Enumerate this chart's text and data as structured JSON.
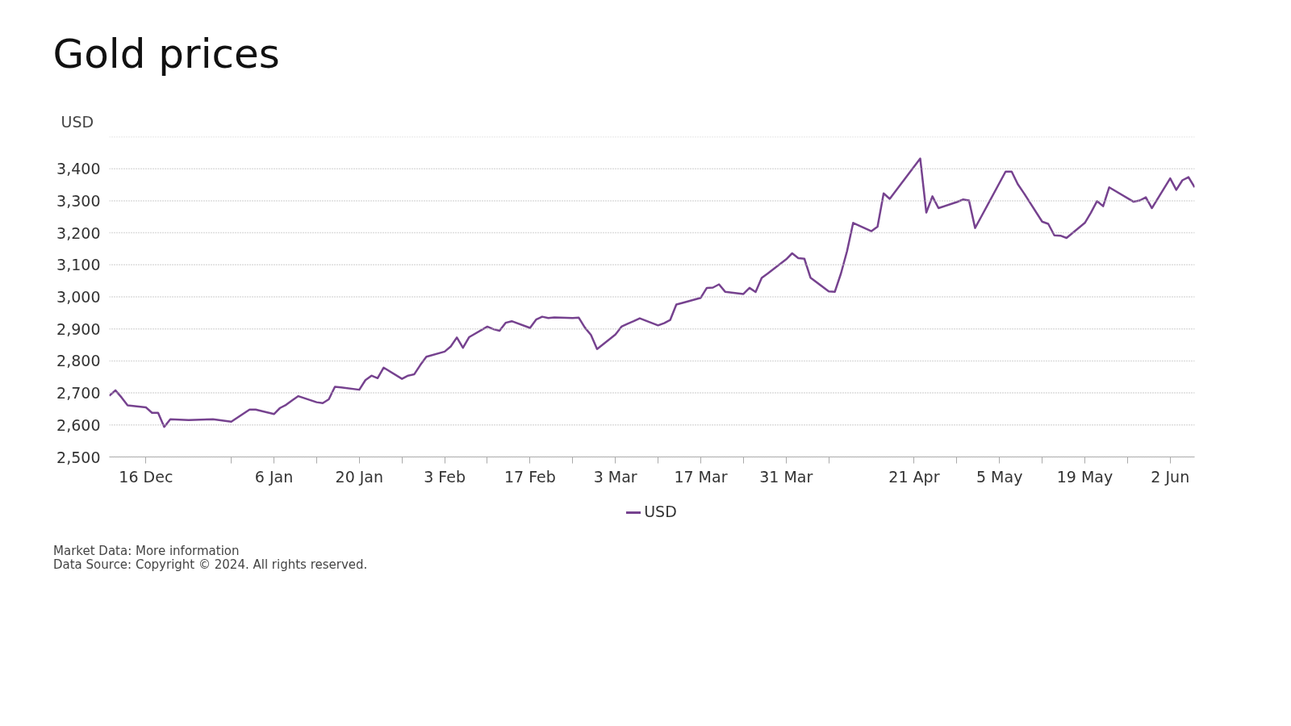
{
  "chart_data": {
    "type": "line",
    "title": "Gold prices",
    "ylabel": "USD",
    "x": [
      "2024-12-10",
      "2024-12-11",
      "2024-12-12",
      "2024-12-13",
      "2024-12-16",
      "2024-12-17",
      "2024-12-18",
      "2024-12-19",
      "2024-12-20",
      "2024-12-23",
      "2024-12-27",
      "2024-12-30",
      "2025-01-02",
      "2025-01-03",
      "2025-01-06",
      "2025-01-07",
      "2025-01-08",
      "2025-01-09",
      "2025-01-10",
      "2025-01-13",
      "2025-01-14",
      "2025-01-15",
      "2025-01-16",
      "2025-01-17",
      "2025-01-20",
      "2025-01-21",
      "2025-01-22",
      "2025-01-23",
      "2025-01-24",
      "2025-01-27",
      "2025-01-28",
      "2025-01-29",
      "2025-01-30",
      "2025-01-31",
      "2025-02-03",
      "2025-02-04",
      "2025-02-05",
      "2025-02-06",
      "2025-02-07",
      "2025-02-10",
      "2025-02-11",
      "2025-02-12",
      "2025-02-13",
      "2025-02-14",
      "2025-02-17",
      "2025-02-18",
      "2025-02-19",
      "2025-02-20",
      "2025-02-21",
      "2025-02-24",
      "2025-02-25",
      "2025-02-26",
      "2025-02-27",
      "2025-02-28",
      "2025-03-03",
      "2025-03-04",
      "2025-03-05",
      "2025-03-06",
      "2025-03-07",
      "2025-03-10",
      "2025-03-11",
      "2025-03-12",
      "2025-03-13",
      "2025-03-14",
      "2025-03-17",
      "2025-03-18",
      "2025-03-19",
      "2025-03-20",
      "2025-03-21",
      "2025-03-24",
      "2025-03-25",
      "2025-03-26",
      "2025-03-27",
      "2025-03-28",
      "2025-03-31",
      "2025-04-01",
      "2025-04-02",
      "2025-04-03",
      "2025-04-04",
      "2025-04-07",
      "2025-04-08",
      "2025-04-09",
      "2025-04-10",
      "2025-04-11",
      "2025-04-14",
      "2025-04-15",
      "2025-04-16",
      "2025-04-17",
      "2025-04-22",
      "2025-04-23",
      "2025-04-24",
      "2025-04-25",
      "2025-04-28",
      "2025-04-29",
      "2025-04-30",
      "2025-05-01",
      "2025-05-02",
      "2025-05-06",
      "2025-05-07",
      "2025-05-08",
      "2025-05-09",
      "2025-05-12",
      "2025-05-13",
      "2025-05-14",
      "2025-05-15",
      "2025-05-16",
      "2025-05-19",
      "2025-05-20",
      "2025-05-21",
      "2025-05-22",
      "2025-05-23",
      "2025-05-27",
      "2025-05-28",
      "2025-05-29",
      "2025-05-30",
      "2025-06-02",
      "2025-06-03",
      "2025-06-04",
      "2025-06-05",
      "2025-06-06"
    ],
    "series": [
      {
        "name": "USD",
        "color": "#76428f",
        "values": [
          2691,
          2708,
          2686,
          2661,
          2655,
          2638,
          2638,
          2594,
          2618,
          2615,
          2618,
          2610,
          2648,
          2648,
          2634,
          2653,
          2663,
          2677,
          2690,
          2671,
          2668,
          2680,
          2719,
          2717,
          2710,
          2740,
          2754,
          2746,
          2779,
          2744,
          2754,
          2758,
          2787,
          2813,
          2829,
          2845,
          2873,
          2841,
          2874,
          2907,
          2899,
          2894,
          2919,
          2924,
          2903,
          2929,
          2938,
          2934,
          2936,
          2934,
          2935,
          2904,
          2881,
          2837,
          2882,
          2907,
          2916,
          2924,
          2933,
          2911,
          2918,
          2928,
          2976,
          2981,
          2997,
          3028,
          3029,
          3039,
          3016,
          3009,
          3028,
          3015,
          3059,
          3073,
          3117,
          3136,
          3121,
          3119,
          3060,
          3017,
          3016,
          3073,
          3143,
          3231,
          3205,
          3219,
          3323,
          3306,
          3432,
          3263,
          3314,
          3277,
          3296,
          3304,
          3301,
          3215,
          3250,
          3391,
          3391,
          3352,
          3324,
          3235,
          3228,
          3192,
          3191,
          3184,
          3231,
          3263,
          3299,
          3283,
          3342,
          3297,
          3301,
          3311,
          3277,
          3370,
          3334,
          3364,
          3374,
          3342
        ]
      }
    ],
    "xlim": [
      "2024-12-10",
      "2025-06-06"
    ],
    "xticks": [
      {
        "value": "2024-12-16",
        "label": "16 Dec"
      },
      {
        "value": "2024-12-30",
        "label": null
      },
      {
        "value": "2025-01-06",
        "label": "6 Jan"
      },
      {
        "value": "2025-01-13",
        "label": null
      },
      {
        "value": "2025-01-20",
        "label": "20 Jan"
      },
      {
        "value": "2025-01-27",
        "label": null
      },
      {
        "value": "2025-02-03",
        "label": "3 Feb"
      },
      {
        "value": "2025-02-10",
        "label": null
      },
      {
        "value": "2025-02-17",
        "label": "17 Feb"
      },
      {
        "value": "2025-02-24",
        "label": null
      },
      {
        "value": "2025-03-03",
        "label": "3 Mar"
      },
      {
        "value": "2025-03-10",
        "label": null
      },
      {
        "value": "2025-03-17",
        "label": "17 Mar"
      },
      {
        "value": "2025-03-24",
        "label": null
      },
      {
        "value": "2025-03-31",
        "label": "31 Mar"
      },
      {
        "value": "2025-04-07",
        "label": null
      },
      {
        "value": "2025-04-21",
        "label": "21 Apr"
      },
      {
        "value": "2025-04-28",
        "label": null
      },
      {
        "value": "2025-05-05",
        "label": "5 May"
      },
      {
        "value": "2025-05-12",
        "label": null
      },
      {
        "value": "2025-05-19",
        "label": "19 May"
      },
      {
        "value": "2025-05-26",
        "label": null
      },
      {
        "value": "2025-06-02",
        "label": "2 Jun"
      }
    ],
    "ylim": [
      2500,
      3500
    ],
    "yticks": [
      {
        "value": 2500,
        "label": "2,500"
      },
      {
        "value": 2600,
        "label": "2,600"
      },
      {
        "value": 2700,
        "label": "2,700"
      },
      {
        "value": 2800,
        "label": "2,800"
      },
      {
        "value": 2900,
        "label": "2,900"
      },
      {
        "value": 3000,
        "label": "3,000"
      },
      {
        "value": 3100,
        "label": "3,100"
      },
      {
        "value": 3200,
        "label": "3,200"
      },
      {
        "value": 3300,
        "label": "3,300"
      },
      {
        "value": 3400,
        "label": "3,400"
      },
      {
        "value": 3500,
        "label": null
      }
    ],
    "grid": "y",
    "legend": "bottom",
    "line_style": "solid",
    "marker": "none",
    "annotations": [
      "Market Data: More information",
      "Data Source: Copyright © 2024. All rights reserved."
    ]
  }
}
